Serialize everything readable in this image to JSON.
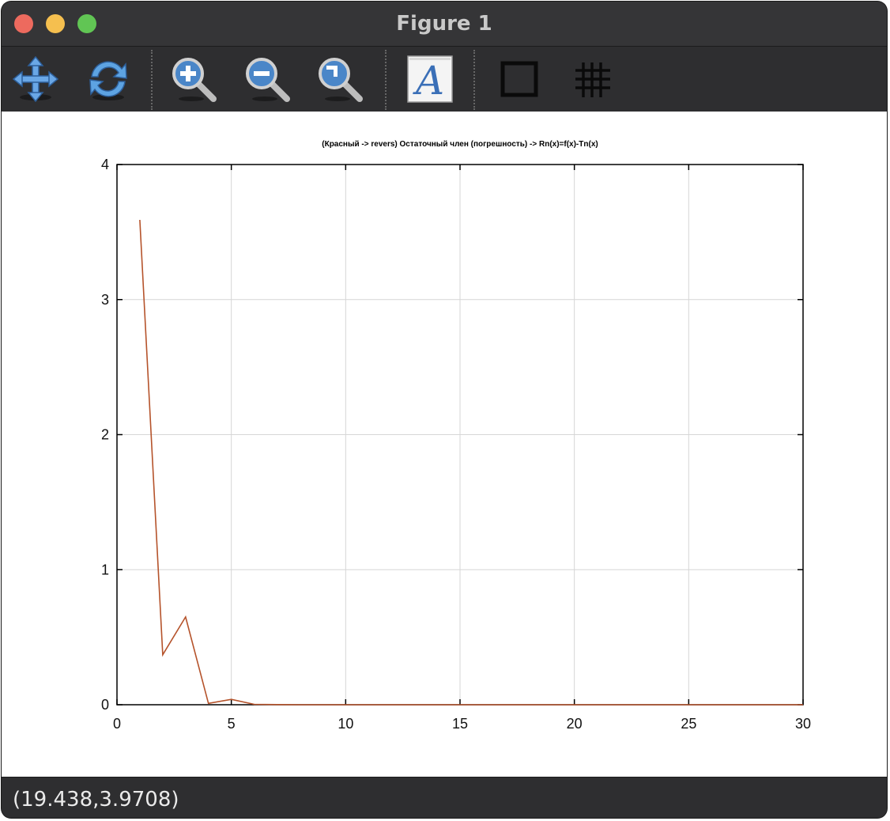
{
  "window": {
    "title": "Figure 1"
  },
  "toolbar": {
    "items": [
      {
        "name": "pan",
        "icon": "pan-arrows-icon"
      },
      {
        "name": "rotate",
        "icon": "rotate-icon"
      },
      {
        "name": "zoom-in",
        "icon": "zoom-in-icon"
      },
      {
        "name": "zoom-out",
        "icon": "zoom-out-icon"
      },
      {
        "name": "zoom-auto",
        "icon": "zoom-auto-icon"
      },
      {
        "name": "insert-text",
        "icon": "text-A-icon"
      },
      {
        "name": "toggle-box",
        "icon": "box-icon"
      },
      {
        "name": "toggle-grid",
        "icon": "grid-icon"
      }
    ]
  },
  "status": {
    "coordinates": "(19.438,3.9708)"
  },
  "chart_data": {
    "type": "line",
    "title": "(Красный -> revers) Остаточный член (погрешность) -> Rn(x)=f(x)-Tn(x)",
    "xlabel": "",
    "ylabel": "",
    "xlim": [
      0,
      30
    ],
    "ylim": [
      0,
      4
    ],
    "xticks": [
      "0",
      "5",
      "10",
      "15",
      "20",
      "25",
      "30"
    ],
    "yticks": [
      "0",
      "1",
      "2",
      "3",
      "4"
    ],
    "grid": true,
    "line_color": "#b5532b",
    "series": [
      {
        "x": [
          1,
          2,
          3,
          4,
          5,
          6,
          7,
          8,
          9,
          10,
          11,
          12,
          13,
          14,
          15,
          16,
          17,
          18,
          19,
          20,
          21,
          22,
          23,
          24,
          25,
          26,
          27,
          28,
          29,
          30
        ],
        "values": [
          3.59,
          0.37,
          0.65,
          0.01,
          0.04,
          0.003,
          0.001,
          0,
          0,
          0,
          0,
          0,
          0,
          0,
          0,
          0,
          0,
          0,
          0,
          0,
          0,
          0,
          0,
          0,
          0,
          0,
          0,
          0,
          0,
          0
        ]
      }
    ]
  }
}
